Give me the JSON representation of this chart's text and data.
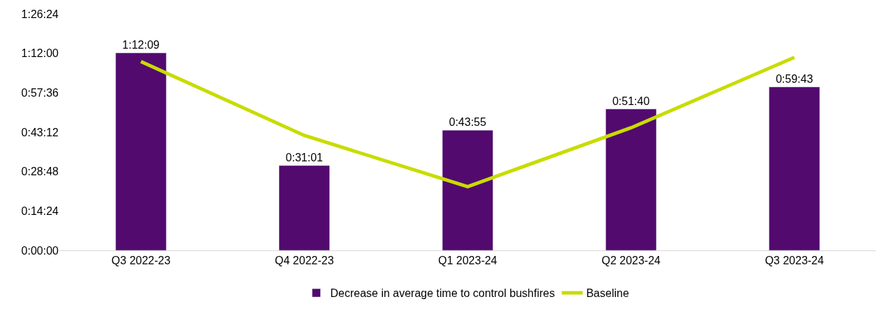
{
  "chart_data": {
    "type": "bar",
    "categories": [
      "Q3 2022-23",
      "Q4 2022-23",
      "Q1 2023-24",
      "Q2 2023-24",
      "Q3 2023-24"
    ],
    "series": [
      {
        "name": "Decrease in average time to control bushfires",
        "color": "#520a6e",
        "values": [
          72.15,
          31.0167,
          43.9167,
          51.6667,
          59.7167
        ],
        "value_labels": [
          "1:12:09",
          "0:31:01",
          "0:43:55",
          "0:51:40",
          "0:59:43"
        ]
      },
      {
        "name": "Baseline",
        "type": "line",
        "color": "#c8dc00",
        "values": [
          69,
          42,
          23.3,
          44.8,
          70.5
        ]
      }
    ],
    "ylim": [
      0,
      86.4
    ],
    "yticks": [
      {
        "value": 0,
        "label": "0:00:00"
      },
      {
        "value": 14.4,
        "label": "0:14:24"
      },
      {
        "value": 28.8,
        "label": "0:28:48"
      },
      {
        "value": 43.2,
        "label": "0:43:12"
      },
      {
        "value": 57.6,
        "label": "0:57:36"
      },
      {
        "value": 72,
        "label": "1:12:00"
      },
      {
        "value": 86.4,
        "label": "1:26:24"
      }
    ],
    "legend": "bottom",
    "grid": false
  }
}
